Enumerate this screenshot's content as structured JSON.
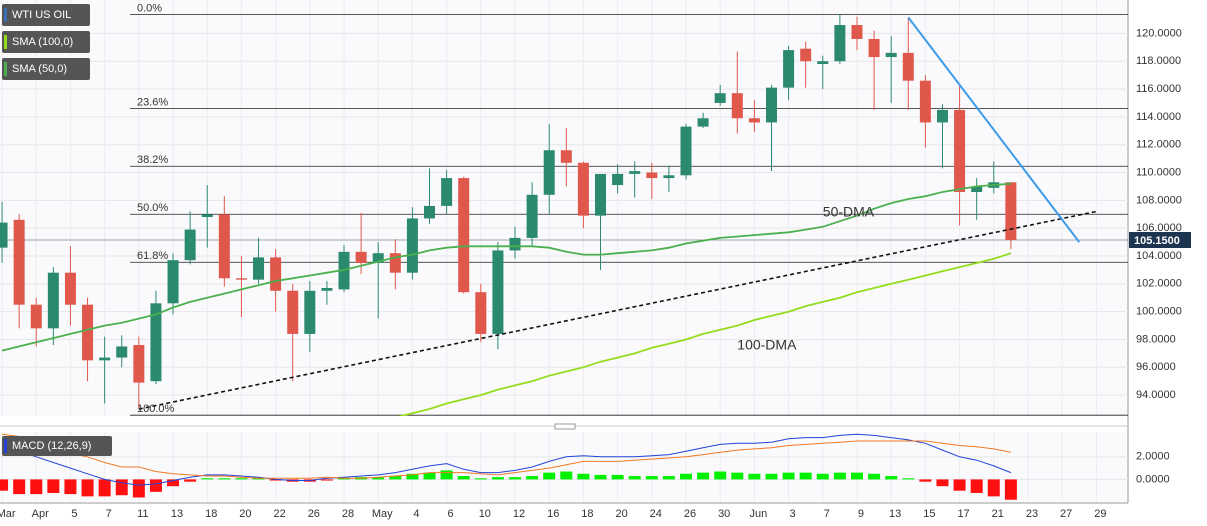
{
  "chart_data": [
    {
      "type": "candlestick",
      "xlim": [
        -0.12,
        65.85
      ],
      "ylim": [
        92.5,
        122.4
      ],
      "grid": true,
      "xticks": [
        {
          "value": 0,
          "label": "Mar"
        },
        {
          "value": 2,
          "label": "Apr"
        },
        {
          "value": 4,
          "label": "5"
        },
        {
          "value": 6,
          "label": "7"
        },
        {
          "value": 8,
          "label": "11"
        },
        {
          "value": 10,
          "label": "13"
        },
        {
          "value": 12,
          "label": "18"
        },
        {
          "value": 14,
          "label": "20"
        },
        {
          "value": 16,
          "label": "22"
        },
        {
          "value": 18,
          "label": "26"
        },
        {
          "value": 20,
          "label": "28"
        },
        {
          "value": 22,
          "label": "May"
        },
        {
          "value": 24,
          "label": "4"
        },
        {
          "value": 26,
          "label": "6"
        },
        {
          "value": 28,
          "label": "10"
        },
        {
          "value": 30,
          "label": "12"
        },
        {
          "value": 32,
          "label": "16"
        },
        {
          "value": 34,
          "label": "18"
        },
        {
          "value": 36,
          "label": "20"
        },
        {
          "value": 38,
          "label": "24"
        },
        {
          "value": 40,
          "label": "26"
        },
        {
          "value": 42,
          "label": "30"
        },
        {
          "value": 44,
          "label": "Jun"
        },
        {
          "value": 46,
          "label": "3"
        },
        {
          "value": 48,
          "label": "7"
        },
        {
          "value": 50,
          "label": "9"
        },
        {
          "value": 52,
          "label": "13"
        },
        {
          "value": 54,
          "label": "15"
        },
        {
          "value": 56,
          "label": "17"
        },
        {
          "value": 58,
          "label": "21"
        },
        {
          "value": 60,
          "label": "23"
        },
        {
          "value": 62,
          "label": "27"
        },
        {
          "value": 64,
          "label": "29"
        }
      ],
      "yticks": [
        {
          "value": 94,
          "label": "94.0000"
        },
        {
          "value": 96,
          "label": "96.0000"
        },
        {
          "value": 98,
          "label": "98.0000"
        },
        {
          "value": 100,
          "label": "100.0000"
        },
        {
          "value": 102,
          "label": "102.0000"
        },
        {
          "value": 104,
          "label": "104.0000"
        },
        {
          "value": 106,
          "label": "106.0000"
        },
        {
          "value": 108,
          "label": "108.0000"
        },
        {
          "value": 110,
          "label": "110.0000"
        },
        {
          "value": 112,
          "label": "112.0000"
        },
        {
          "value": 114,
          "label": "114.0000"
        },
        {
          "value": 116,
          "label": "116.0000"
        },
        {
          "value": 118,
          "label": "118.0000"
        },
        {
          "value": 120,
          "label": "120.0000"
        }
      ],
      "candles": {
        "name": "WTI US OIL",
        "up_color": "#2b8a6e",
        "down_color": "#e0574c",
        "open": [
          104.6,
          106.6,
          100.5,
          98.8,
          102.8,
          100.5,
          96.5,
          96.7,
          97.6,
          95.0,
          100.6,
          103.7,
          106.8,
          107.0,
          102.4,
          102.3,
          103.9,
          101.5,
          98.4,
          101.5,
          101.6,
          104.3,
          103.5,
          104.2,
          102.8,
          106.7,
          107.6,
          109.6,
          101.4,
          98.4,
          104.4,
          105.3,
          108.4,
          111.6,
          110.7,
          106.9,
          109.1,
          109.9,
          110.0,
          109.6,
          109.8,
          113.3,
          115.0,
          115.7,
          113.9,
          113.6,
          116.1,
          118.9,
          117.8,
          118.0,
          120.6,
          119.6,
          118.3,
          118.6,
          116.6,
          113.6,
          114.5,
          108.6,
          108.9,
          109.3
        ],
        "high": [
          107.9,
          107.0,
          101.0,
          103.2,
          104.7,
          101.0,
          98.2,
          98.3,
          98.2,
          101.5,
          104.2,
          107.2,
          109.1,
          108.3,
          104.0,
          105.3,
          104.5,
          102.0,
          102.2,
          102.2,
          104.8,
          107.1,
          105.0,
          105.2,
          107.5,
          110.3,
          110.2,
          109.7,
          102.0,
          105.0,
          106.1,
          109.3,
          113.5,
          113.2,
          110.8,
          109.9,
          110.6,
          110.8,
          110.7,
          110.5,
          113.5,
          114.3,
          116.3,
          118.7,
          115.2,
          116.3,
          119.1,
          119.4,
          118.4,
          121.4,
          121.2,
          120.2,
          119.8,
          121.1,
          117.0,
          114.9,
          116.3,
          109.6,
          110.8,
          109.3
        ],
        "low": [
          103.5,
          98.8,
          97.5,
          97.6,
          99.0,
          95.0,
          93.4,
          96.0,
          93.0,
          94.8,
          99.8,
          103.4,
          104.6,
          101.8,
          99.6,
          102.0,
          100.0,
          95.0,
          97.1,
          100.5,
          101.4,
          102.7,
          99.5,
          101.6,
          102.3,
          106.3,
          107.0,
          101.3,
          97.8,
          97.3,
          103.8,
          104.7,
          107.0,
          109.0,
          106.0,
          103.0,
          108.5,
          108.2,
          108.1,
          108.6,
          109.5,
          113.2,
          114.8,
          112.8,
          112.9,
          110.1,
          115.2,
          116.1,
          116.0,
          117.8,
          118.8,
          114.5,
          115.0,
          114.5,
          111.8,
          110.3,
          106.2,
          106.6,
          108.5,
          104.5
        ],
        "close": [
          106.4,
          100.5,
          98.8,
          102.8,
          100.5,
          96.5,
          96.7,
          97.5,
          94.9,
          100.6,
          103.7,
          105.9,
          107.0,
          102.4,
          102.3,
          103.9,
          101.5,
          98.4,
          101.5,
          101.7,
          104.3,
          103.5,
          104.2,
          102.8,
          106.7,
          107.6,
          109.6,
          101.4,
          98.4,
          104.4,
          105.3,
          108.4,
          111.6,
          110.7,
          106.9,
          109.9,
          109.9,
          110.1,
          109.6,
          109.8,
          113.3,
          113.9,
          115.7,
          113.9,
          113.6,
          116.1,
          118.8,
          118.0,
          118.0,
          120.6,
          119.6,
          118.3,
          118.6,
          116.6,
          113.6,
          114.5,
          108.6,
          109.0,
          109.3,
          105.15
        ]
      },
      "lines": [
        {
          "name": "SMA (100,0)",
          "label": "100-DMA",
          "color": "#93dc1e",
          "values": [
            null,
            null,
            null,
            null,
            null,
            null,
            null,
            null,
            null,
            null,
            null,
            null,
            null,
            null,
            null,
            null,
            null,
            null,
            null,
            null,
            null,
            null,
            92.1,
            92.4,
            92.7,
            93.0,
            93.4,
            93.7,
            94.0,
            94.4,
            94.7,
            95.0,
            95.4,
            95.7,
            96.0,
            96.4,
            96.7,
            97.0,
            97.4,
            97.7,
            98.0,
            98.4,
            98.7,
            99.0,
            99.4,
            99.7,
            100.0,
            100.4,
            100.7,
            101.0,
            101.4,
            101.7,
            102.0,
            102.3,
            102.6,
            102.9,
            103.2,
            103.5,
            103.8,
            104.2
          ]
        },
        {
          "name": "SMA (50,0)",
          "label": "50-DMA",
          "color": "#4caf50",
          "values": [
            97.2,
            97.5,
            97.8,
            98.1,
            98.4,
            98.7,
            99.0,
            99.2,
            99.5,
            99.8,
            100.3,
            100.7,
            101.0,
            101.3,
            101.6,
            101.9,
            102.2,
            102.4,
            102.6,
            102.8,
            103.0,
            103.3,
            103.6,
            103.9,
            104.1,
            104.4,
            104.6,
            104.7,
            104.7,
            104.7,
            104.7,
            104.7,
            104.6,
            104.3,
            104.1,
            104.1,
            104.2,
            104.3,
            104.4,
            104.6,
            104.9,
            105.1,
            105.3,
            105.4,
            105.5,
            105.6,
            105.7,
            105.9,
            106.1,
            106.5,
            106.9,
            107.4,
            107.8,
            108.1,
            108.3,
            108.6,
            108.8,
            109.0,
            109.1,
            109.2
          ]
        }
      ],
      "fibonacci": [
        {
          "value": 121.36,
          "label": "0.0%"
        },
        {
          "value": 114.6,
          "label": "23.6%"
        },
        {
          "value": 110.45,
          "label": "38.2%"
        },
        {
          "value": 107.0,
          "label": "50.0%"
        },
        {
          "value": 103.55,
          "label": "61.8%"
        },
        {
          "value": 92.56,
          "label": "100.0%"
        }
      ],
      "trendlines": [
        {
          "x": [
            8,
            64
          ],
          "y": [
            93.0,
            107.2
          ],
          "color": "#111111",
          "dashed": true
        },
        {
          "x": [
            53,
            63
          ],
          "y": [
            121.15,
            105.0
          ],
          "color": "#3d9be9",
          "dashed": false
        }
      ],
      "last_price": {
        "value": 105.15,
        "label": "105.1500"
      }
    },
    {
      "type": "macd",
      "name": "MACD (12,26,9)",
      "ylim": [
        -2.0,
        4.2
      ],
      "yticks": [
        {
          "value": 2,
          "label": "2.0000"
        },
        {
          "value": 0,
          "label": "0.0000"
        }
      ],
      "histogram": {
        "up_color": "#00f000",
        "down_color": "#ff1010",
        "values": [
          -1.0,
          -1.3,
          -1.3,
          -1.2,
          -1.3,
          -1.5,
          -1.5,
          -1.4,
          -1.6,
          -1.1,
          -0.6,
          -0.2,
          0.1,
          0.1,
          0.1,
          0.1,
          -0.1,
          -0.2,
          -0.2,
          -0.1,
          0.1,
          0.2,
          0.2,
          0.3,
          0.5,
          0.6,
          0.8,
          0.3,
          0.1,
          0.2,
          0.2,
          0.3,
          0.6,
          0.7,
          0.5,
          0.4,
          0.4,
          0.3,
          0.3,
          0.3,
          0.5,
          0.6,
          0.7,
          0.6,
          0.5,
          0.5,
          0.6,
          0.6,
          0.5,
          0.6,
          0.6,
          0.5,
          0.3,
          0.1,
          -0.2,
          -0.6,
          -1.0,
          -1.2,
          -1.5,
          -1.8
        ]
      },
      "series": [
        {
          "color": "#2443d6",
          "values": [
            3.0,
            2.5,
            2.0,
            1.5,
            1.0,
            0.5,
            0.0,
            -0.3,
            -0.5,
            -0.4,
            -0.1,
            0.2,
            0.4,
            0.4,
            0.3,
            0.2,
            0.0,
            -0.1,
            -0.1,
            0.1,
            0.2,
            0.3,
            0.4,
            0.6,
            0.9,
            1.2,
            1.4,
            0.9,
            0.6,
            0.6,
            0.8,
            1.1,
            1.6,
            2.0,
            2.1,
            2.0,
            2.0,
            2.0,
            2.1,
            2.2,
            2.5,
            2.8,
            3.1,
            3.2,
            3.2,
            3.3,
            3.6,
            3.7,
            3.7,
            3.9,
            4.0,
            3.9,
            3.7,
            3.5,
            3.2,
            2.6,
            2.0,
            1.7,
            1.2,
            0.6
          ]
        },
        {
          "color": "#f07a22",
          "values": [
            4.0,
            3.8,
            3.3,
            2.7,
            2.3,
            2.0,
            1.5,
            1.1,
            1.1,
            0.7,
            0.5,
            0.4,
            0.3,
            0.3,
            0.2,
            0.1,
            0.1,
            0.1,
            0.1,
            0.2,
            0.1,
            0.1,
            0.2,
            0.3,
            0.4,
            0.6,
            0.6,
            0.6,
            0.5,
            0.4,
            0.6,
            0.8,
            1.0,
            1.3,
            1.6,
            1.6,
            1.6,
            1.7,
            1.8,
            1.9,
            2.0,
            2.2,
            2.4,
            2.6,
            2.7,
            2.8,
            3.0,
            3.1,
            3.2,
            3.3,
            3.4,
            3.4,
            3.4,
            3.4,
            3.4,
            3.2,
            3.0,
            2.9,
            2.7,
            2.4
          ]
        }
      ]
    }
  ]
}
